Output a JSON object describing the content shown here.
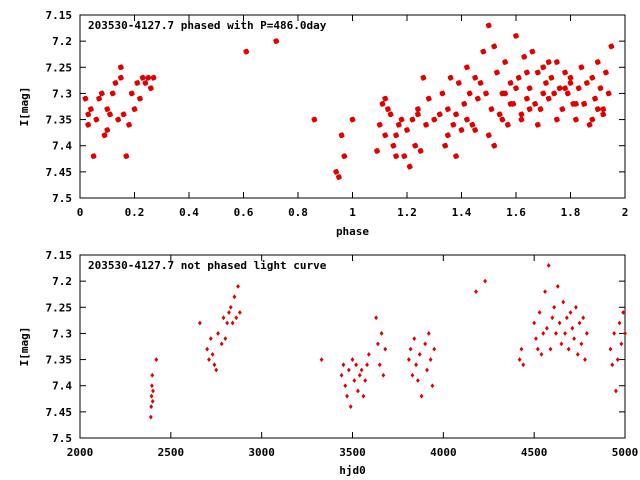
{
  "chart_data": [
    {
      "type": "scatter",
      "title": "203530-4127.7 phased with P=486.0day",
      "xlabel": "phase",
      "ylabel": "I[mag]",
      "xlim": [
        0,
        2
      ],
      "ylim": [
        7.15,
        7.5
      ],
      "y_inverted": true,
      "x_ticks": [
        "0",
        "0.2",
        "0.4",
        "0.6",
        "0.8",
        "1",
        "1.2",
        "1.4",
        "1.6",
        "1.8",
        "2"
      ],
      "y_ticks": [
        "7.15",
        "7.2",
        "7.25",
        "7.3",
        "7.35",
        "7.4",
        "7.45",
        "7.5"
      ],
      "marker": "star",
      "color": "#e00000",
      "x": [
        0.02,
        0.03,
        0.03,
        0.04,
        0.05,
        0.06,
        0.07,
        0.08,
        0.09,
        0.1,
        0.1,
        0.11,
        0.12,
        0.13,
        0.14,
        0.15,
        0.15,
        0.16,
        0.17,
        0.18,
        0.19,
        0.2,
        0.21,
        0.22,
        0.23,
        0.24,
        0.25,
        0.26,
        0.27,
        0.61,
        0.72,
        0.86,
        0.94,
        0.95,
        0.96,
        0.97,
        1.0,
        1.09,
        1.1,
        1.11,
        1.12,
        1.13,
        1.14,
        1.15,
        1.16,
        1.17,
        1.18,
        1.19,
        1.2,
        1.21,
        1.22,
        1.23,
        1.24,
        1.25,
        1.27,
        1.28,
        1.3,
        1.32,
        1.33,
        1.34,
        1.35,
        1.36,
        1.37,
        1.38,
        1.39,
        1.4,
        1.41,
        1.42,
        1.43,
        1.44,
        1.45,
        1.46,
        1.47,
        1.48,
        1.49,
        1.5,
        1.51,
        1.52,
        1.53,
        1.54,
        1.55,
        1.56,
        1.57,
        1.58,
        1.59,
        1.6,
        1.61,
        1.62,
        1.63,
        1.64,
        1.65,
        1.66,
        1.67,
        1.68,
        1.69,
        1.7,
        1.71,
        1.72,
        1.73,
        1.74,
        1.75,
        1.76,
        1.77,
        1.78,
        1.79,
        1.8,
        1.81,
        1.82,
        1.83,
        1.84,
        1.85,
        1.86,
        1.87,
        1.88,
        1.89,
        1.9,
        1.91,
        1.92,
        1.93,
        1.94,
        1.95,
        1.5,
        1.52,
        1.55,
        1.58,
        1.62,
        1.6,
        1.65,
        1.68,
        1.7,
        1.75,
        1.8,
        1.85,
        1.9,
        1.45,
        1.42,
        1.38,
        1.35,
        1.56,
        1.64,
        1.72,
        1.78,
        1.82,
        1.88,
        1.92,
        1.26,
        1.24,
        1.12,
        1.16
      ],
      "y": [
        7.31,
        7.34,
        7.36,
        7.33,
        7.42,
        7.35,
        7.31,
        7.3,
        7.38,
        7.33,
        7.37,
        7.34,
        7.3,
        7.28,
        7.35,
        7.25,
        7.27,
        7.34,
        7.42,
        7.36,
        7.3,
        7.33,
        7.28,
        7.31,
        7.27,
        7.28,
        7.27,
        7.29,
        7.27,
        7.22,
        7.2,
        7.35,
        7.45,
        7.46,
        7.38,
        7.42,
        7.35,
        7.41,
        7.36,
        7.32,
        7.38,
        7.33,
        7.34,
        7.4,
        7.42,
        7.36,
        7.35,
        7.42,
        7.37,
        7.44,
        7.35,
        7.4,
        7.33,
        7.41,
        7.36,
        7.31,
        7.35,
        7.34,
        7.3,
        7.4,
        7.33,
        7.27,
        7.36,
        7.42,
        7.28,
        7.37,
        7.32,
        7.25,
        7.3,
        7.36,
        7.27,
        7.31,
        7.28,
        7.22,
        7.3,
        7.17,
        7.33,
        7.21,
        7.26,
        7.34,
        7.3,
        7.24,
        7.36,
        7.28,
        7.32,
        7.19,
        7.27,
        7.35,
        7.23,
        7.31,
        7.29,
        7.22,
        7.32,
        7.26,
        7.33,
        7.25,
        7.28,
        7.31,
        7.27,
        7.3,
        7.24,
        7.29,
        7.33,
        7.26,
        7.3,
        7.27,
        7.32,
        7.35,
        7.29,
        7.25,
        7.32,
        7.28,
        7.36,
        7.27,
        7.31,
        7.24,
        7.29,
        7.34,
        7.26,
        7.3,
        7.21,
        7.38,
        7.4,
        7.35,
        7.32,
        7.34,
        7.29,
        7.33,
        7.36,
        7.3,
        7.35,
        7.28,
        7.32,
        7.33,
        7.37,
        7.35,
        7.34,
        7.38,
        7.3,
        7.26,
        7.24,
        7.29,
        7.32,
        7.35,
        7.33,
        7.27,
        7.34,
        7.31,
        7.38
      ]
    },
    {
      "type": "scatter",
      "title": "203530-4127.7 not phased light curve",
      "xlabel": "hjd0",
      "ylabel": "I[mag]",
      "xlim": [
        2000,
        5000
      ],
      "ylim": [
        7.15,
        7.5
      ],
      "y_inverted": true,
      "x_ticks": [
        "2000",
        "2500",
        "3000",
        "3500",
        "4000",
        "4500",
        "5000"
      ],
      "y_ticks": [
        "7.15",
        "7.2",
        "7.25",
        "7.3",
        "7.35",
        "7.4",
        "7.45",
        "7.5"
      ],
      "marker": "diamond",
      "color": "#e00000",
      "x": [
        2390,
        2392,
        2394,
        2396,
        2398,
        2400,
        2402,
        2420,
        2660,
        2700,
        2710,
        2720,
        2730,
        2740,
        2750,
        2760,
        2780,
        2790,
        2800,
        2810,
        2820,
        2830,
        2840,
        2850,
        2860,
        2870,
        2880,
        3330,
        3440,
        3450,
        3460,
        3470,
        3480,
        3490,
        3500,
        3510,
        3520,
        3530,
        3540,
        3550,
        3560,
        3570,
        3580,
        3590,
        3630,
        3640,
        3650,
        3660,
        3670,
        3680,
        3810,
        3820,
        3830,
        3840,
        3850,
        3860,
        3870,
        3880,
        3900,
        3910,
        3920,
        3930,
        3940,
        3950,
        4180,
        4230,
        4420,
        4430,
        4440,
        4500,
        4510,
        4520,
        4530,
        4540,
        4550,
        4560,
        4570,
        4580,
        4590,
        4600,
        4610,
        4620,
        4630,
        4640,
        4650,
        4660,
        4670,
        4680,
        4690,
        4700,
        4710,
        4720,
        4730,
        4740,
        4750,
        4760,
        4770,
        4780,
        4790,
        4920,
        4930,
        4940,
        4950,
        4960,
        4970,
        4980,
        4990,
        5000
      ],
      "y": [
        7.46,
        7.44,
        7.42,
        7.4,
        7.38,
        7.43,
        7.41,
        7.35,
        7.28,
        7.33,
        7.35,
        7.31,
        7.34,
        7.36,
        7.37,
        7.3,
        7.32,
        7.27,
        7.31,
        7.28,
        7.26,
        7.25,
        7.28,
        7.23,
        7.27,
        7.21,
        7.26,
        7.35,
        7.38,
        7.36,
        7.4,
        7.42,
        7.37,
        7.44,
        7.35,
        7.39,
        7.36,
        7.41,
        7.38,
        7.37,
        7.42,
        7.39,
        7.36,
        7.34,
        7.27,
        7.32,
        7.36,
        7.3,
        7.38,
        7.33,
        7.35,
        7.33,
        7.38,
        7.31,
        7.36,
        7.39,
        7.34,
        7.42,
        7.32,
        7.37,
        7.3,
        7.35,
        7.4,
        7.33,
        7.22,
        7.2,
        7.35,
        7.33,
        7.36,
        7.28,
        7.31,
        7.33,
        7.26,
        7.34,
        7.3,
        7.22,
        7.29,
        7.17,
        7.33,
        7.27,
        7.25,
        7.3,
        7.21,
        7.28,
        7.32,
        7.24,
        7.3,
        7.27,
        7.33,
        7.26,
        7.29,
        7.31,
        7.25,
        7.34,
        7.28,
        7.32,
        7.27,
        7.35,
        7.3,
        7.33,
        7.36,
        7.3,
        7.41,
        7.35,
        7.28,
        7.32,
        7.26,
        7.3
      ]
    }
  ]
}
